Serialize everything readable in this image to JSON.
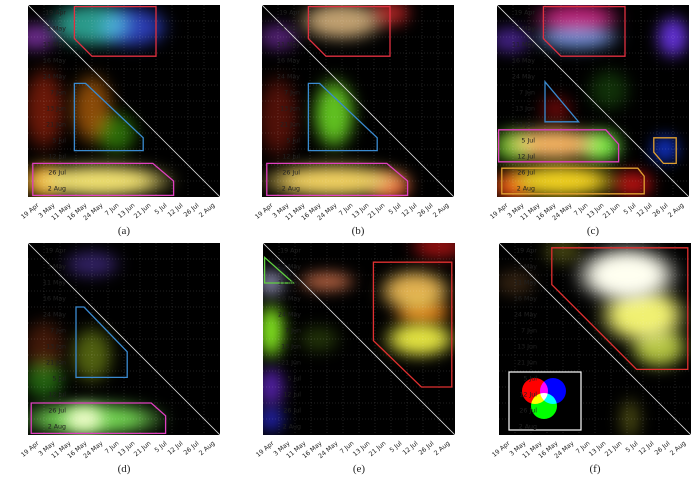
{
  "tick_labels": [
    "19 Apr",
    "3 May",
    "11 May",
    "16 May",
    "24 May",
    "7 Jun",
    "13 Jun",
    "21 Jun",
    "5 Jul",
    "12 Jul",
    "26 Jul",
    "2 Aug"
  ],
  "chart_data": {
    "type": "heatmap",
    "grid_size": 12,
    "panels": [
      {
        "caption": "(a)",
        "blobs": [
          [
            4,
            1.2,
            3,
            1.6,
            "#2a9a8a"
          ],
          [
            6.5,
            1.4,
            2.5,
            1.5,
            "#2a3ab0"
          ],
          [
            0.5,
            2,
            1.5,
            1,
            "#6a2a8a"
          ],
          [
            1,
            6.5,
            1.5,
            3,
            "#6a1808"
          ],
          [
            4,
            6.5,
            1.5,
            2.5,
            "#8a4a08"
          ],
          [
            5.5,
            8,
            1.5,
            1.5,
            "#2a6a08"
          ],
          [
            4.5,
            11,
            5,
            1.2,
            "#f0e070"
          ],
          [
            1,
            11,
            1.5,
            1.2,
            "#e09020"
          ]
        ],
        "polygons": [
          {
            "color": "#e03040",
            "points": [
              [
                2.9,
                0.1
              ],
              [
                8,
                0.1
              ],
              [
                8,
                3.2
              ],
              [
                4,
                3.2
              ],
              [
                2.9,
                2.1
              ]
            ]
          },
          {
            "color": "#3a8ad0",
            "points": [
              [
                2.9,
                4.9
              ],
              [
                3.6,
                4.9
              ],
              [
                7.2,
                8.3
              ],
              [
                7.2,
                9.1
              ],
              [
                2.9,
                9.1
              ]
            ]
          },
          {
            "color": "#e040c0",
            "points": [
              [
                0.3,
                9.9
              ],
              [
                7.8,
                9.9
              ],
              [
                9.1,
                11
              ],
              [
                9.1,
                11.9
              ],
              [
                0.3,
                11.9
              ]
            ]
          }
        ]
      },
      {
        "caption": "(b)",
        "blobs": [
          [
            5,
            1,
            3,
            1.4,
            "#c0a070"
          ],
          [
            8,
            0.5,
            1.5,
            1,
            "#a02020"
          ],
          [
            1,
            2,
            1.5,
            1,
            "#502070"
          ],
          [
            4.5,
            6.8,
            1.5,
            2.5,
            "#60c020"
          ],
          [
            1,
            7,
            1.5,
            3,
            "#501008"
          ],
          [
            4.5,
            11,
            5,
            1.2,
            "#f0d060"
          ],
          [
            8,
            11.3,
            1.5,
            1,
            "#e05030"
          ]
        ],
        "polygons": [
          {
            "color": "#e03040",
            "points": [
              [
                2.9,
                0.1
              ],
              [
                8,
                0.1
              ],
              [
                8,
                3.2
              ],
              [
                4,
                3.2
              ],
              [
                2.9,
                2.1
              ]
            ]
          },
          {
            "color": "#3a8ad0",
            "points": [
              [
                2.9,
                4.9
              ],
              [
                3.6,
                4.9
              ],
              [
                7.2,
                8.3
              ],
              [
                7.2,
                9.1
              ],
              [
                2.9,
                9.1
              ]
            ]
          },
          {
            "color": "#e040c0",
            "points": [
              [
                0.3,
                9.9
              ],
              [
                7.8,
                9.9
              ],
              [
                9.1,
                11
              ],
              [
                9.1,
                11.9
              ],
              [
                0.3,
                11.9
              ]
            ]
          }
        ]
      },
      {
        "caption": "(c)",
        "blobs": [
          [
            5,
            0.8,
            3,
            1.2,
            "#b02070"
          ],
          [
            5,
            2,
            3,
            1,
            "#6080c0"
          ],
          [
            11,
            2,
            1.2,
            1.5,
            "#6030d0"
          ],
          [
            0.8,
            2.2,
            1.5,
            1,
            "#402080"
          ],
          [
            3.7,
            6.5,
            1.2,
            1,
            "#600808"
          ],
          [
            7,
            5.3,
            1.5,
            1.5,
            "#103008"
          ],
          [
            3.5,
            8.7,
            3.5,
            1.2,
            "#f0b060"
          ],
          [
            6.5,
            8.8,
            1.5,
            1.2,
            "#70e040"
          ],
          [
            1,
            8.8,
            1.5,
            1.2,
            "#50a020"
          ],
          [
            4,
            11,
            4,
            1.2,
            "#f0d020"
          ],
          [
            1,
            11.3,
            1.5,
            1,
            "#e04010"
          ],
          [
            8.5,
            11.2,
            1.5,
            1,
            "#b01010"
          ],
          [
            10.5,
            9,
            1,
            1,
            "#1030c0"
          ]
        ],
        "polygons": [
          {
            "color": "#e03040",
            "points": [
              [
                2.9,
                0.1
              ],
              [
                8,
                0.1
              ],
              [
                8,
                3.2
              ],
              [
                4,
                3.2
              ],
              [
                2.9,
                2.1
              ]
            ]
          },
          {
            "color": "#3a8ad0",
            "points": [
              [
                3,
                4.8
              ],
              [
                3,
                7.3
              ],
              [
                5.1,
                7.3
              ]
            ]
          },
          {
            "color": "#e040c0",
            "points": [
              [
                0.1,
                7.8
              ],
              [
                6.8,
                7.8
              ],
              [
                7.6,
                8.7
              ],
              [
                7.6,
                9.8
              ],
              [
                0.1,
                9.8
              ]
            ]
          },
          {
            "color": "#e0a030",
            "points": [
              [
                0.3,
                10.2
              ],
              [
                8.8,
                10.2
              ],
              [
                9.2,
                10.7
              ],
              [
                9.2,
                11.8
              ],
              [
                0.3,
                11.8
              ]
            ]
          },
          {
            "color": "#e0a030",
            "points": [
              [
                9.8,
                8.3
              ],
              [
                11.2,
                8.3
              ],
              [
                11.2,
                9.9
              ],
              [
                10.4,
                9.9
              ],
              [
                9.8,
                9.2
              ]
            ]
          }
        ]
      },
      {
        "caption": "(d)",
        "blobs": [
          [
            4,
            1.3,
            2,
            1,
            "#302060"
          ],
          [
            1,
            6.5,
            1.5,
            2,
            "#401808"
          ],
          [
            4,
            7,
            1.5,
            2,
            "#506010"
          ],
          [
            1,
            8.5,
            1.5,
            1.5,
            "#206010"
          ],
          [
            4,
            11,
            5,
            1.2,
            "#70d050"
          ],
          [
            3.5,
            11,
            1.5,
            1,
            "#e0f0b0"
          ]
        ],
        "polygons": [
          {
            "color": "#3a8ad0",
            "points": [
              [
                3,
                4
              ],
              [
                3.5,
                4
              ],
              [
                6.2,
                6.8
              ],
              [
                6.2,
                8.4
              ],
              [
                3,
                8.4
              ]
            ]
          },
          {
            "color": "#e040c0",
            "points": [
              [
                0.2,
                10
              ],
              [
                7.7,
                10
              ],
              [
                8.6,
                10.8
              ],
              [
                8.6,
                11.9
              ],
              [
                0.2,
                11.9
              ]
            ]
          }
        ]
      },
      {
        "caption": "(e)",
        "blobs": [
          [
            11,
            0.2,
            2,
            1,
            "#901010"
          ],
          [
            4,
            2.4,
            2,
            0.7,
            "#b06040"
          ],
          [
            9.5,
            3,
            2.5,
            1.5,
            "#e0b050"
          ],
          [
            10,
            4.3,
            2,
            1,
            "#d07010"
          ],
          [
            9.8,
            6,
            2.5,
            1.3,
            "#e0e040"
          ],
          [
            0.5,
            5.5,
            1,
            2,
            "#80e020"
          ],
          [
            0.5,
            2.5,
            1,
            1,
            "#8080a0"
          ],
          [
            0.5,
            9,
            1,
            1.5,
            "#5020a0"
          ],
          [
            0.5,
            11,
            1,
            1,
            "#2020a0"
          ],
          [
            3.5,
            6,
            1.5,
            1,
            "#203008"
          ]
        ],
        "polygons": [
          {
            "color": "#60d040",
            "points": [
              [
                0.1,
                0.9
              ],
              [
                0.1,
                2.5
              ],
              [
                1.9,
                2.5
              ]
            ]
          },
          {
            "color": "#e03030",
            "points": [
              [
                6.9,
                1.2
              ],
              [
                11.8,
                1.2
              ],
              [
                11.8,
                9
              ],
              [
                9.9,
                9
              ],
              [
                6.9,
                6.1
              ]
            ]
          }
        ]
      },
      {
        "caption": "(f)",
        "blobs": [
          [
            8,
            2,
            3.5,
            2,
            "#fffff0"
          ],
          [
            9,
            4.5,
            3,
            2,
            "#f0f070"
          ],
          [
            10,
            6.5,
            2,
            1.5,
            "#b0c040"
          ],
          [
            4,
            0.5,
            1.5,
            1,
            "#404010"
          ],
          [
            1,
            2.5,
            1.5,
            1,
            "#302010"
          ],
          [
            8.2,
            11,
            0.8,
            1.5,
            "#404010"
          ]
        ],
        "polygons": [
          {
            "color": "#e03030",
            "points": [
              [
                3.3,
                0.3
              ],
              [
                11.8,
                0.3
              ],
              [
                11.8,
                7.9
              ],
              [
                8.6,
                7.9
              ],
              [
                3.3,
                2.6
              ]
            ]
          }
        ],
        "inset": "rgb-venn"
      }
    ]
  }
}
